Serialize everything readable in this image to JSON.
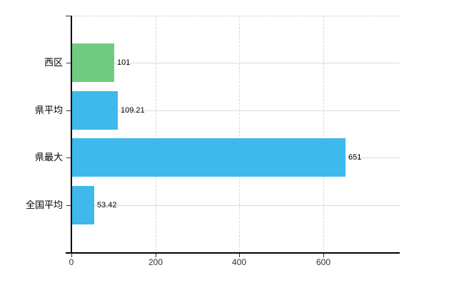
{
  "chart_data": {
    "type": "bar",
    "orientation": "horizontal",
    "title": "",
    "xlabel": "",
    "ylabel": "",
    "categories": [
      "西区",
      "県平均",
      "県最大",
      "全国平均"
    ],
    "values": [
      101,
      109.21,
      651,
      53.42
    ],
    "value_labels": [
      "101",
      "109.21",
      "651",
      "53.42"
    ],
    "x_ticks": [
      0,
      200,
      400,
      600
    ],
    "x_tick_labels": [
      "0",
      "200",
      "400",
      "600"
    ],
    "xlim": [
      0,
      782
    ],
    "grid": {
      "horizontal": "solid",
      "vertical": "dashed",
      "top_border": "dashed",
      "legend_position": "none"
    },
    "colors": {
      "bar_green": "#70CB80",
      "bar_blue": "#3FB8EC",
      "bar_colors": [
        "#70CB80",
        "#3FB8EC",
        "#3FB8EC",
        "#3FB8EC"
      ],
      "h_gridline": "#D5DED5",
      "v_gridline": "#D9D3D9",
      "top_border": "#CFCFCF",
      "axis": "#000000",
      "tick": "#333333",
      "x_tick_label": "#333333",
      "value_label": "#000000",
      "category_label": "#000000",
      "background": "#FFFFFF"
    }
  }
}
